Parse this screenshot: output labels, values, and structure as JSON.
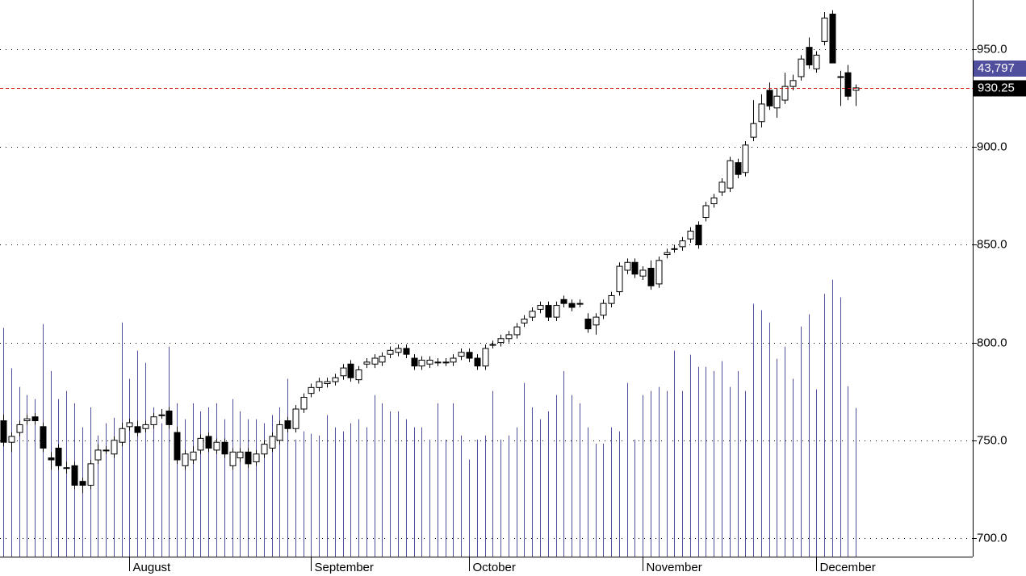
{
  "chart_data": {
    "type": "candlestick",
    "categories": [
      null,
      null,
      null,
      null,
      null,
      null,
      null,
      null,
      null,
      null,
      null,
      null,
      null,
      null,
      null,
      null,
      "August",
      null,
      null,
      null,
      null,
      null,
      null,
      null,
      null,
      null,
      null,
      null,
      null,
      null,
      null,
      null,
      null,
      null,
      null,
      null,
      null,
      null,
      null,
      "September",
      null,
      null,
      null,
      null,
      null,
      null,
      null,
      null,
      null,
      null,
      null,
      null,
      null,
      null,
      null,
      null,
      null,
      null,
      null,
      "October",
      null,
      null,
      null,
      null,
      null,
      null,
      null,
      null,
      null,
      null,
      null,
      null,
      null,
      null,
      null,
      null,
      null,
      null,
      null,
      null,
      null,
      "November",
      null,
      null,
      null,
      null,
      null,
      null,
      null,
      null,
      null,
      null,
      null,
      null,
      null,
      null,
      null,
      null,
      null,
      null,
      null,
      null,
      null,
      "December",
      null,
      null,
      null,
      null,
      null
    ],
    "open": [
      760,
      749,
      754,
      760,
      762,
      757,
      741,
      746,
      736,
      737,
      729,
      727,
      740,
      745,
      743,
      749,
      757,
      757,
      756,
      758,
      763,
      765,
      754,
      737,
      740,
      745,
      752,
      745,
      749,
      737,
      741,
      744,
      739,
      743,
      746,
      750,
      760,
      756,
      766,
      774,
      777,
      779,
      780,
      783,
      789,
      781,
      789,
      789,
      790,
      794,
      795,
      797,
      792,
      788,
      789,
      790,
      790,
      790,
      793,
      795,
      792,
      788,
      799,
      800,
      802,
      804,
      810,
      813,
      817,
      819,
      813,
      822,
      820,
      820,
      812,
      809,
      814,
      820,
      826,
      837,
      841,
      834,
      838,
      830,
      845,
      848,
      849,
      853,
      860,
      864,
      871,
      877,
      879,
      892,
      887,
      905,
      913,
      929,
      920,
      924,
      931,
      936,
      951,
      940,
      954,
      968,
      936,
      938,
      929
    ],
    "high": [
      763,
      754,
      760,
      763,
      764,
      759,
      744,
      748,
      739,
      739,
      731,
      740,
      748,
      747,
      752,
      759,
      761,
      760,
      760,
      764,
      766,
      767,
      757,
      745,
      747,
      753,
      754,
      751,
      751,
      746,
      746,
      746,
      745,
      750,
      754,
      760,
      762,
      768,
      774,
      779,
      782,
      782,
      784,
      789,
      791,
      788,
      792,
      794,
      795,
      798,
      799,
      799,
      794,
      793,
      793,
      792,
      792,
      794,
      797,
      797,
      794,
      799,
      801,
      804,
      806,
      810,
      814,
      818,
      821,
      821,
      821,
      824,
      822,
      822,
      815,
      815,
      822,
      826,
      841,
      843,
      843,
      839,
      842,
      844,
      848,
      850,
      854,
      859,
      862,
      872,
      876,
      884,
      895,
      894,
      903,
      924,
      927,
      933,
      930,
      938,
      937,
      947,
      956,
      949,
      969,
      970,
      939,
      942,
      932
    ],
    "low": [
      747,
      744,
      752,
      758,
      758,
      744,
      735,
      735,
      733,
      725,
      723,
      725,
      738,
      743,
      741,
      747,
      755,
      752,
      754,
      756,
      761,
      756,
      738,
      735,
      738,
      743,
      744,
      743,
      741,
      735,
      739,
      736,
      737,
      741,
      744,
      748,
      754,
      754,
      764,
      772,
      775,
      777,
      778,
      781,
      780,
      779,
      787,
      787,
      788,
      792,
      793,
      792,
      786,
      786,
      787,
      788,
      788,
      788,
      791,
      790,
      786,
      786,
      797,
      798,
      800,
      802,
      808,
      811,
      815,
      811,
      811,
      818,
      816,
      818,
      805,
      804,
      812,
      818,
      824,
      835,
      833,
      832,
      827,
      828,
      843,
      846,
      847,
      851,
      848,
      862,
      869,
      875,
      877,
      884,
      885,
      903,
      910,
      919,
      915,
      922,
      929,
      934,
      940,
      938,
      952,
      943,
      921,
      924,
      921
    ],
    "close": [
      749,
      752,
      758,
      761,
      760,
      746,
      740,
      737,
      736,
      727,
      727,
      738,
      745,
      745,
      750,
      756,
      759,
      754,
      758,
      762,
      763,
      758,
      740,
      743,
      744,
      751,
      746,
      749,
      743,
      744,
      744,
      738,
      743,
      748,
      752,
      758,
      756,
      766,
      772,
      777,
      780,
      780,
      782,
      787,
      782,
      786,
      790,
      792,
      793,
      796,
      797,
      794,
      788,
      791,
      791,
      790,
      790,
      792,
      795,
      792,
      788,
      797,
      799,
      802,
      804,
      808,
      812,
      816,
      819,
      813,
      819,
      820,
      818,
      820,
      807,
      813,
      820,
      824,
      839,
      841,
      835,
      837,
      829,
      842,
      846,
      848,
      852,
      857,
      850,
      870,
      874,
      882,
      893,
      886,
      901,
      912,
      922,
      921,
      926,
      931,
      934,
      945,
      942,
      947,
      966,
      943,
      936,
      926,
      930.25
    ],
    "volume": {
      "color": "#4f4f9e",
      "ylim": [
        0,
        164000
      ],
      "values": [
        67400,
        55500,
        50000,
        47600,
        46400,
        68500,
        54700,
        46400,
        48800,
        45200,
        38100,
        44000,
        35700,
        39300,
        40900,
        69000,
        52400,
        60700,
        57100,
        44000,
        39300,
        61900,
        45200,
        40500,
        45200,
        42800,
        44000,
        45200,
        40500,
        46400,
        42800,
        40500,
        40500,
        39300,
        41700,
        44000,
        52400,
        34500,
        36900,
        36200,
        35700,
        41700,
        38100,
        36900,
        39300,
        40500,
        38100,
        47600,
        45200,
        42800,
        42800,
        40500,
        38100,
        38100,
        34500,
        45200,
        34500,
        45200,
        35700,
        28600,
        34500,
        35700,
        48800,
        34500,
        35700,
        38100,
        51200,
        44000,
        40500,
        42800,
        47600,
        54700,
        47600,
        45200,
        38100,
        33300,
        33300,
        38100,
        36900,
        51200,
        34500,
        47600,
        48800,
        50000,
        48800,
        60700,
        48800,
        59500,
        55900,
        55900,
        54700,
        57600,
        50000,
        54700,
        48800,
        74500,
        72600,
        69000,
        58300,
        61900,
        52400,
        67800,
        71400,
        49300,
        77400,
        81600,
        76400,
        50200,
        43797
      ]
    },
    "ylim": [
      690.5,
      975.2
    ],
    "yticks": [
      {
        "value": 700,
        "label": "700.0"
      },
      {
        "value": 750,
        "label": "750.0"
      },
      {
        "value": 800,
        "label": "800.0"
      },
      {
        "value": 850,
        "label": "850.0"
      },
      {
        "value": 900,
        "label": "900.0"
      },
      {
        "value": 950,
        "label": "950.0"
      }
    ],
    "grid": true,
    "up_color": "#ffffff",
    "down_color": "#000000",
    "last_price": {
      "value": 930.25,
      "label": "930.25",
      "color": "#dd0000"
    },
    "last_volume": {
      "value": 43797,
      "label": "43,797"
    }
  }
}
